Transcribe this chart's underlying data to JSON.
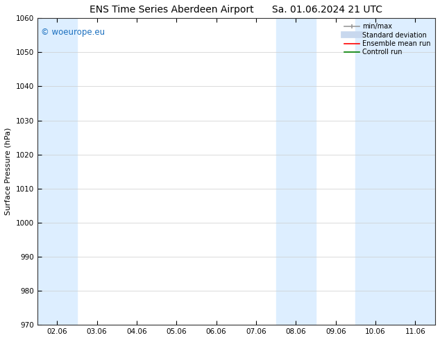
{
  "title": "ENS Time Series Aberdeen Airport",
  "title2": "Sa. 01.06.2024 21 UTC",
  "ylabel": "Surface Pressure (hPa)",
  "ylim": [
    970,
    1060
  ],
  "yticks": [
    970,
    980,
    990,
    1000,
    1010,
    1020,
    1030,
    1040,
    1050,
    1060
  ],
  "xlim_start": -0.5,
  "xlim_end": 9.5,
  "xtick_labels": [
    "02.06",
    "03.06",
    "04.06",
    "05.06",
    "06.06",
    "07.06",
    "08.06",
    "09.06",
    "10.06",
    "11.06"
  ],
  "xtick_positions": [
    0,
    1,
    2,
    3,
    4,
    5,
    6,
    7,
    8,
    9
  ],
  "shaded_bands": [
    {
      "x_start": -0.5,
      "x_end": 0.5
    },
    {
      "x_start": 5.5,
      "x_end": 6.5
    },
    {
      "x_start": 7.5,
      "x_end": 8.5
    },
    {
      "x_start": 8.5,
      "x_end": 9.5
    }
  ],
  "shaded_color": "#ddeeff",
  "watermark_text": "© woeurope.eu",
  "watermark_color": "#1a6fbf",
  "legend_items": [
    {
      "label": "min/max",
      "color": "#999999",
      "lw": 1.2,
      "ls": "-"
    },
    {
      "label": "Standard deviation",
      "color": "#c8d8ee",
      "lw": 7,
      "ls": "-"
    },
    {
      "label": "Ensemble mean run",
      "color": "red",
      "lw": 1.2,
      "ls": "-"
    },
    {
      "label": "Controll run",
      "color": "green",
      "lw": 1.2,
      "ls": "-"
    }
  ],
  "bg_color": "#ffffff",
  "grid_color": "#cccccc",
  "title_fontsize": 10,
  "axis_label_fontsize": 8,
  "tick_fontsize": 7.5
}
